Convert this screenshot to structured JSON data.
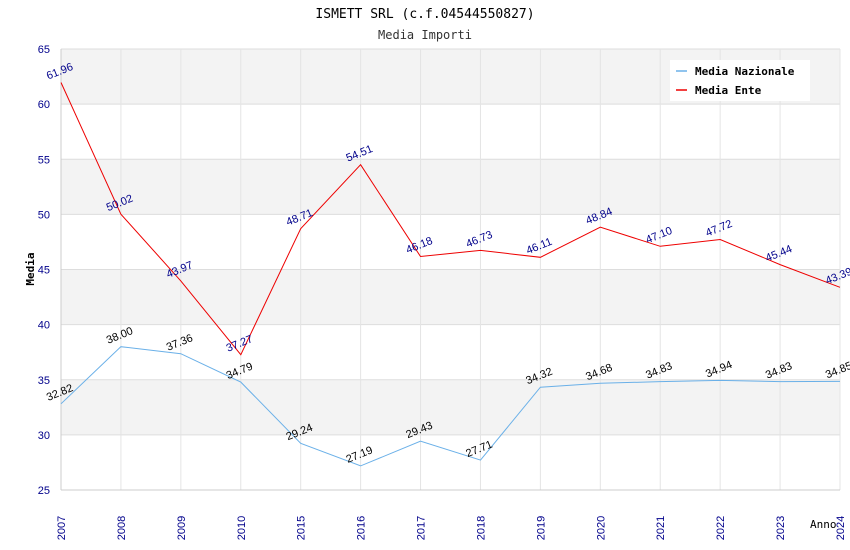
{
  "chart_data": {
    "type": "line",
    "title": "ISMETT SRL (c.f.04544550827)",
    "subtitle": "Media Importi",
    "xlabel": "Anno",
    "ylabel": "Media",
    "categories": [
      "2007",
      "2008",
      "2009",
      "2010",
      "2015",
      "2016",
      "2017",
      "2018",
      "2019",
      "2020",
      "2021",
      "2022",
      "2023",
      "2024"
    ],
    "ylim": [
      25,
      65
    ],
    "yticks": [
      25,
      30,
      35,
      40,
      45,
      50,
      55,
      60,
      65
    ],
    "grid": true,
    "legend_position": "top-right",
    "series": [
      {
        "name": "Media Nazionale",
        "color": "#6ab0e8",
        "label_color": "#000000",
        "values": [
          32.82,
          38.0,
          37.36,
          34.79,
          29.24,
          27.19,
          29.43,
          27.71,
          34.32,
          34.68,
          34.83,
          34.94,
          34.83,
          34.85
        ],
        "labels": [
          "32.82",
          "38.00",
          "37.36",
          "34.79",
          "29.24",
          "27.19",
          "29.43",
          "27.71",
          "34.32",
          "34.68",
          "34.83",
          "34.94",
          "34.83",
          "34.85"
        ]
      },
      {
        "name": "Media Ente",
        "color": "#ee0000",
        "label_color": "#00008b",
        "values": [
          61.96,
          50.02,
          43.97,
          37.27,
          48.71,
          54.51,
          46.18,
          46.73,
          46.11,
          48.84,
          47.1,
          47.72,
          45.44,
          43.39
        ],
        "labels": [
          "61.96",
          "50.02",
          "43.97",
          "37.27",
          "48.71",
          "54.51",
          "46.18",
          "46.73",
          "46.11",
          "48.84",
          "47.10",
          "47.72",
          "45.44",
          "43.39"
        ]
      }
    ]
  }
}
